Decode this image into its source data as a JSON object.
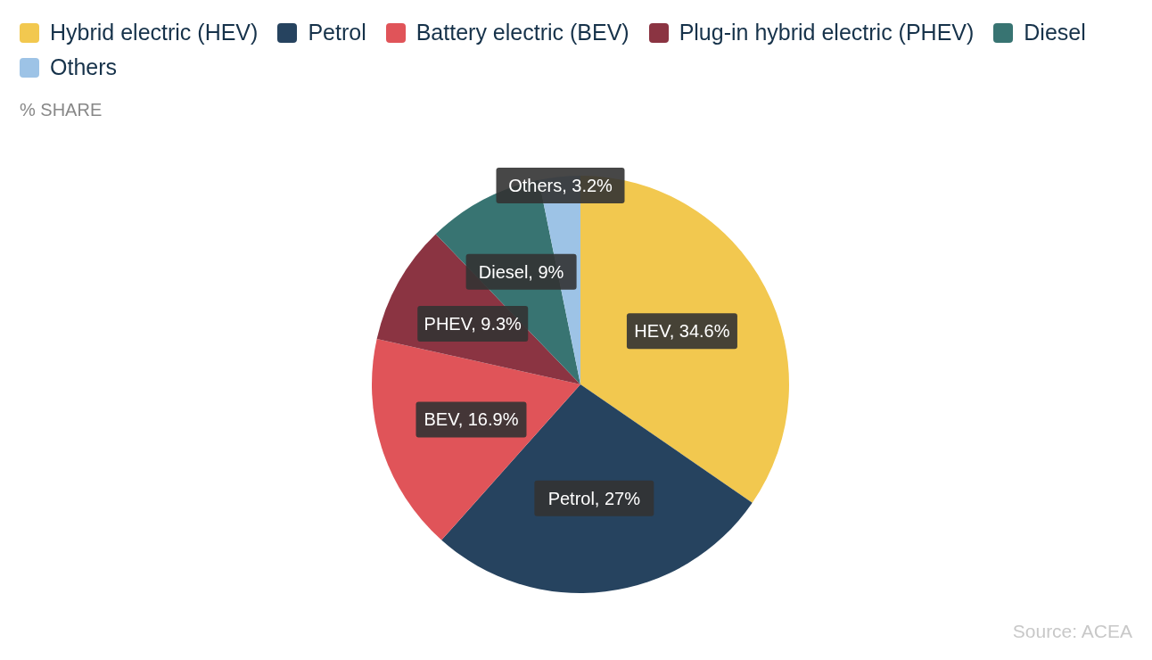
{
  "chart_data": {
    "type": "pie",
    "subtitle": "% SHARE",
    "categories": [
      "Hybrid electric (HEV)",
      "Petrol",
      "Battery electric (BEV)",
      "Plug-in hybrid electric (PHEV)",
      "Diesel",
      "Others"
    ],
    "values": [
      34.6,
      27,
      16.9,
      9.3,
      9,
      3.2
    ],
    "colors": [
      "#f2c84f",
      "#26435f",
      "#e05459",
      "#8b3442",
      "#387472",
      "#9dc3e6"
    ],
    "value_labels": [
      "HEV, 34.6%",
      "Petrol, 27%",
      "BEV, 16.9%",
      "PHEV, 9.3%",
      "Diesel, 9%",
      "Others, 3.2%"
    ],
    "legend": "top left",
    "annotations": [
      "Source:  ACEA"
    ]
  }
}
